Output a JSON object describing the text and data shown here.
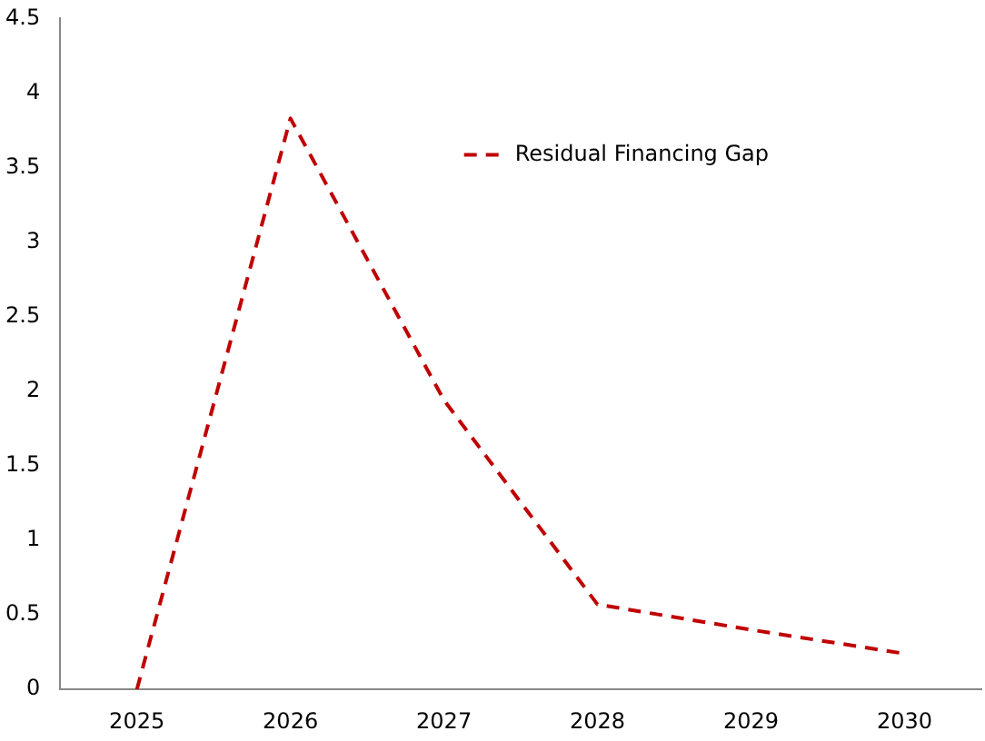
{
  "chart_data": {
    "type": "line",
    "categories": [
      "2025",
      "2026",
      "2027",
      "2028",
      "2029",
      "2030"
    ],
    "series": [
      {
        "name": "Residual Financing Gap",
        "color": "#c00000",
        "values": [
          0,
          3.83,
          1.94,
          0.57,
          0.4,
          0.24
        ]
      }
    ],
    "ylim": [
      0,
      4.5
    ],
    "yticks": [
      0,
      0.5,
      1,
      1.5,
      2,
      2.5,
      3,
      3.5,
      4,
      4.5
    ],
    "grid": false,
    "legend": "top right",
    "line_style": "dashed",
    "marker": "none"
  }
}
